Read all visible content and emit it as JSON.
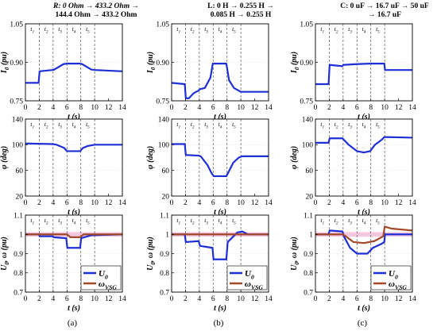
{
  "figure": {
    "columns": [
      {
        "id": "a",
        "header_line1": "R: 0 Ohm → 433.2 Ohm →",
        "header_line2": "144.4 Ohm → 433.2 Ohm",
        "header_line3": "",
        "caption": "(a)"
      },
      {
        "id": "b",
        "header_line1": "L: 0 H → 0.255 H →",
        "header_line2": "0.085 H → 0.255 H",
        "header_line3": "",
        "caption": "(b)"
      },
      {
        "id": "c",
        "header_line1": "C: 0 uF → 16.7 uF → 50 uF",
        "header_line2": "→ 16.7 uF",
        "header_line3": "",
        "caption": "(c)"
      }
    ],
    "intervals": [
      "t1",
      "t2",
      "t3",
      "t4",
      "t5"
    ],
    "boundaries": [
      2,
      4,
      6,
      8,
      10
    ],
    "xlabel": "t (s)",
    "xticks": [
      0,
      2,
      4,
      6,
      8,
      10,
      12,
      14
    ],
    "colors": {
      "blue": "#1f2fd6",
      "brown": "#a04a2a",
      "pink_band": "#f6c8e0",
      "grid": "#555555"
    },
    "legend": {
      "u_label": "U",
      "u_sub": "0",
      "w_label": "ω",
      "w_sub": "VSG"
    }
  },
  "chart_data": [
    {
      "type": "line",
      "row": "I0",
      "column": "a",
      "ylabel": "I0 (pu)",
      "ylim": [
        0.75,
        1.05
      ],
      "yticks": [
        0.75,
        0.9,
        1.05
      ],
      "series": [
        {
          "values": [
            [
              0,
              0.82
            ],
            [
              1.9,
              0.82
            ],
            [
              2.05,
              0.865
            ],
            [
              3.9,
              0.87
            ],
            [
              4.05,
              0.87
            ],
            [
              5.5,
              0.893
            ],
            [
              6,
              0.895
            ],
            [
              7.9,
              0.895
            ],
            [
              8.2,
              0.893
            ],
            [
              9.5,
              0.872
            ],
            [
              10,
              0.87
            ],
            [
              14,
              0.865
            ]
          ]
        }
      ]
    },
    {
      "type": "line",
      "row": "I0",
      "column": "b",
      "ylabel": "I0 (pu)",
      "ylim": [
        0.75,
        1.05
      ],
      "yticks": [
        0.75,
        0.9,
        1.05
      ],
      "series": [
        {
          "values": [
            [
              0,
              0.82
            ],
            [
              1.9,
              0.815
            ],
            [
              2.05,
              0.76
            ],
            [
              2.5,
              0.76
            ],
            [
              3.2,
              0.78
            ],
            [
              3.9,
              0.79
            ],
            [
              4.05,
              0.795
            ],
            [
              4.8,
              0.8
            ],
            [
              5.6,
              0.84
            ],
            [
              5.95,
              0.895
            ],
            [
              7.9,
              0.895
            ],
            [
              8.3,
              0.83
            ],
            [
              9,
              0.8
            ],
            [
              10,
              0.785
            ],
            [
              14,
              0.785
            ]
          ]
        }
      ]
    },
    {
      "type": "line",
      "row": "I0",
      "column": "c",
      "ylabel": "I0 (pu)",
      "ylim": [
        0.75,
        1.05
      ],
      "yticks": [
        0.75,
        0.9,
        1.05
      ],
      "series": [
        {
          "values": [
            [
              0,
              0.815
            ],
            [
              1.9,
              0.815
            ],
            [
              2.05,
              0.89
            ],
            [
              3.9,
              0.885
            ],
            [
              4.05,
              0.89
            ],
            [
              6,
              0.893
            ],
            [
              7.9,
              0.895
            ],
            [
              9.95,
              0.895
            ],
            [
              10.05,
              0.87
            ],
            [
              14,
              0.87
            ]
          ]
        }
      ]
    },
    {
      "type": "line",
      "row": "phi",
      "column": "a",
      "ylabel": "φ (deg)",
      "ylim": [
        20,
        140
      ],
      "yticks": [
        20,
        60,
        100,
        140
      ],
      "series": [
        {
          "values": [
            [
              0,
              102
            ],
            [
              3.9,
              101
            ],
            [
              4.5,
              100
            ],
            [
              5.6,
              95
            ],
            [
              6,
              90
            ],
            [
              7.9,
              90
            ],
            [
              8.3,
              95
            ],
            [
              9,
              98
            ],
            [
              10,
              100
            ],
            [
              14,
              100
            ]
          ]
        }
      ]
    },
    {
      "type": "line",
      "row": "phi",
      "column": "b",
      "ylabel": "φ (deg)",
      "ylim": [
        20,
        140
      ],
      "yticks": [
        20,
        60,
        100,
        140
      ],
      "series": [
        {
          "values": [
            [
              0,
              101
            ],
            [
              1.9,
              101
            ],
            [
              2.05,
              84
            ],
            [
              3.9,
              83
            ],
            [
              4.2,
              82
            ],
            [
              5.2,
              68
            ],
            [
              5.8,
              55
            ],
            [
              6.1,
              51
            ],
            [
              7.9,
              51
            ],
            [
              8.1,
              55
            ],
            [
              8.9,
              72
            ],
            [
              9.7,
              80
            ],
            [
              10.2,
              82
            ],
            [
              14,
              82
            ]
          ]
        }
      ]
    },
    {
      "type": "line",
      "row": "phi",
      "column": "c",
      "ylabel": "φ (deg)",
      "ylim": [
        20,
        140
      ],
      "yticks": [
        20,
        60,
        100,
        140
      ],
      "series": [
        {
          "values": [
            [
              0,
              103
            ],
            [
              1.9,
              103
            ],
            [
              2.05,
              110
            ],
            [
              3.9,
              110
            ],
            [
              4.8,
              100
            ],
            [
              6,
              90
            ],
            [
              7,
              88
            ],
            [
              7.9,
              90
            ],
            [
              8.6,
              100
            ],
            [
              9.6,
              108
            ],
            [
              9.95,
              112
            ],
            [
              14,
              111
            ]
          ]
        }
      ]
    },
    {
      "type": "line",
      "row": "U0_omega",
      "column": "a",
      "ylabel": "U0, ω (pu)",
      "ylim": [
        0.7,
        1.1
      ],
      "yticks": [
        0.7,
        0.8,
        0.9,
        1,
        1.1
      ],
      "series": [
        {
          "name": "U0",
          "color": "blue",
          "values": [
            [
              0,
              1.0
            ],
            [
              1.9,
              1.0
            ],
            [
              2.1,
              0.99
            ],
            [
              3.9,
              0.99
            ],
            [
              4.1,
              0.985
            ],
            [
              5.9,
              0.98
            ],
            [
              6.05,
              0.93
            ],
            [
              7.9,
              0.93
            ],
            [
              8.05,
              0.98
            ],
            [
              9.5,
              0.995
            ],
            [
              14,
              1.0
            ]
          ]
        },
        {
          "name": "ωVSG",
          "color": "brown",
          "values": [
            [
              0,
              1.0
            ],
            [
              6,
              1.0
            ],
            [
              6.5,
              0.985
            ],
            [
              7.9,
              0.985
            ],
            [
              8.4,
              1.0
            ],
            [
              14,
              1.0
            ]
          ]
        }
      ]
    },
    {
      "type": "line",
      "row": "U0_omega",
      "column": "b",
      "ylabel": "U0, ω (pu)",
      "ylim": [
        0.7,
        1.1
      ],
      "yticks": [
        0.7,
        0.8,
        0.9,
        1,
        1.1
      ],
      "series": [
        {
          "name": "U0",
          "color": "blue",
          "values": [
            [
              0,
              1.0
            ],
            [
              1.9,
              1.0
            ],
            [
              2.05,
              0.96
            ],
            [
              3.9,
              0.965
            ],
            [
              4.1,
              0.94
            ],
            [
              5.9,
              0.93
            ],
            [
              6.05,
              0.87
            ],
            [
              7.9,
              0.87
            ],
            [
              8.1,
              0.96
            ],
            [
              9.5,
              1.01
            ],
            [
              10.2,
              1.015
            ],
            [
              11,
              1.0
            ],
            [
              14,
              1.0
            ]
          ]
        },
        {
          "name": "ωVSG",
          "color": "brown",
          "values": [
            [
              0,
              1.0
            ],
            [
              14,
              1.0
            ]
          ]
        }
      ]
    },
    {
      "type": "line",
      "row": "U0_omega",
      "column": "c",
      "ylabel": "U0, ω (pu)",
      "ylim": [
        0.7,
        1.1
      ],
      "yticks": [
        0.7,
        0.8,
        0.9,
        1,
        1.1
      ],
      "series": [
        {
          "name": "U0",
          "color": "blue",
          "values": [
            [
              0,
              1.0
            ],
            [
              1.9,
              1.0
            ],
            [
              2.05,
              1.02
            ],
            [
              3.9,
              1.015
            ],
            [
              4.1,
              0.99
            ],
            [
              5,
              0.93
            ],
            [
              6,
              0.9
            ],
            [
              7.5,
              0.9
            ],
            [
              8.3,
              0.93
            ],
            [
              9.5,
              0.95
            ],
            [
              9.95,
              0.96
            ],
            [
              10.05,
              1.0
            ],
            [
              14,
              1.0
            ]
          ]
        },
        {
          "name": "ωVSG",
          "color": "brown",
          "values": [
            [
              0,
              1.0
            ],
            [
              4,
              1.0
            ],
            [
              5.5,
              0.96
            ],
            [
              7,
              0.955
            ],
            [
              8.5,
              0.965
            ],
            [
              9.8,
              0.99
            ],
            [
              10,
              1.04
            ],
            [
              11,
              1.03
            ],
            [
              14,
              1.02
            ]
          ]
        }
      ]
    }
  ]
}
